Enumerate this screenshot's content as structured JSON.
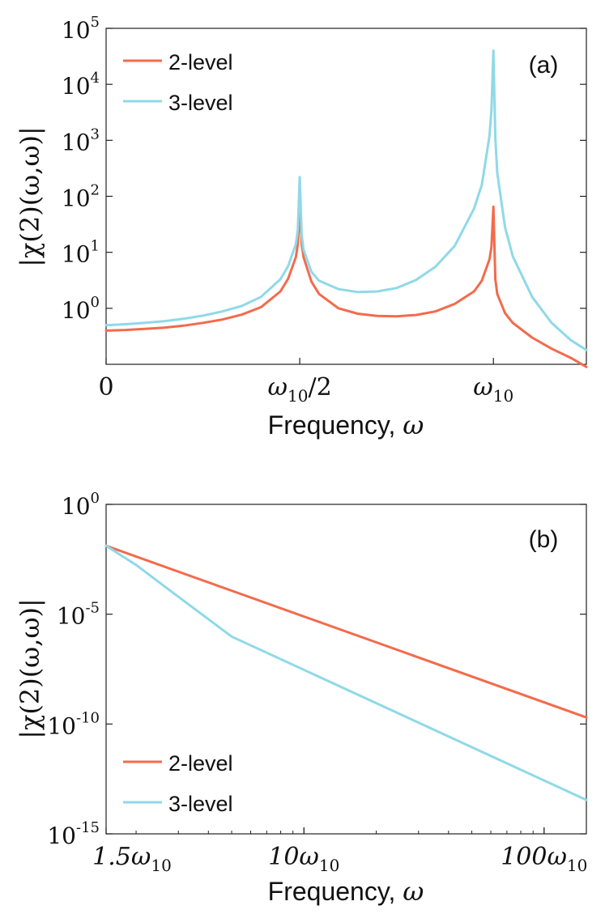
{
  "chart_data": [
    {
      "type": "line",
      "panel_label": "(a)",
      "xlabel_text": "Frequency, ",
      "xlabel_symbol": "ω",
      "ylabel": "|χ(2)(ω,ω)|",
      "yscale": "log",
      "ylim": [
        0.1,
        100000
      ],
      "xlim": [
        0,
        1.24
      ],
      "y_ticks": [
        {
          "value": 1,
          "base": "10",
          "exp": "0"
        },
        {
          "value": 10,
          "base": "10",
          "exp": "1"
        },
        {
          "value": 100,
          "base": "10",
          "exp": "2"
        },
        {
          "value": 1000,
          "base": "10",
          "exp": "3"
        },
        {
          "value": 10000,
          "base": "10",
          "exp": "4"
        },
        {
          "value": 100000,
          "base": "10",
          "exp": "5"
        }
      ],
      "x_ticks": [
        {
          "value": 0,
          "main": "0",
          "sub": "",
          "tail": ""
        },
        {
          "value": 0.5,
          "main": "ω",
          "sub": "10",
          "tail": "/2"
        },
        {
          "value": 1.0,
          "main": "ω",
          "sub": "10",
          "tail": ""
        }
      ],
      "legend_position": "top-left",
      "series": [
        {
          "name": "2-level",
          "color": "#f26b4c",
          "x": [
            0,
            0.05,
            0.1,
            0.15,
            0.2,
            0.25,
            0.3,
            0.35,
            0.4,
            0.45,
            0.47,
            0.49,
            0.495,
            0.5,
            0.505,
            0.51,
            0.53,
            0.55,
            0.6,
            0.65,
            0.7,
            0.75,
            0.8,
            0.85,
            0.9,
            0.95,
            0.97,
            0.99,
            0.995,
            1.0,
            1.005,
            1.01,
            1.03,
            1.05,
            1.1,
            1.15,
            1.2,
            1.24
          ],
          "values": [
            0.4,
            0.41,
            0.43,
            0.45,
            0.49,
            0.55,
            0.63,
            0.77,
            1.05,
            2.0,
            3.4,
            8.2,
            14,
            62,
            14,
            8.1,
            3.0,
            1.8,
            1.0,
            0.8,
            0.73,
            0.72,
            0.76,
            0.88,
            1.2,
            2.0,
            3.1,
            7.5,
            12.5,
            65,
            3.3,
            1.8,
            0.82,
            0.55,
            0.3,
            0.19,
            0.13,
            0.09
          ]
        },
        {
          "name": "3-level",
          "color": "#8fd9e8",
          "x": [
            0,
            0.05,
            0.1,
            0.15,
            0.2,
            0.25,
            0.3,
            0.35,
            0.4,
            0.45,
            0.47,
            0.49,
            0.495,
            0.5,
            0.505,
            0.51,
            0.53,
            0.55,
            0.6,
            0.65,
            0.7,
            0.75,
            0.8,
            0.85,
            0.9,
            0.95,
            0.97,
            0.99,
            0.995,
            1.0,
            1.005,
            1.01,
            1.03,
            1.05,
            1.1,
            1.15,
            1.2,
            1.24
          ],
          "values": [
            0.5,
            0.52,
            0.55,
            0.59,
            0.65,
            0.74,
            0.88,
            1.1,
            1.6,
            3.3,
            5.7,
            14,
            25,
            220,
            20,
            11,
            4.5,
            3.1,
            2.2,
            1.95,
            2.0,
            2.3,
            3.2,
            5.5,
            13,
            60,
            160,
            1200,
            3500,
            40000,
            1100,
            260,
            28,
            8.5,
            1.6,
            0.55,
            0.27,
            0.18
          ]
        }
      ]
    },
    {
      "type": "line",
      "panel_label": "(b)",
      "xlabel_text": "Frequency, ",
      "xlabel_symbol": "ω",
      "ylabel": "|χ(2)(ω,ω)|",
      "xscale": "log",
      "yscale": "log",
      "xlim": [
        1.5,
        150
      ],
      "ylim": [
        1e-15,
        1
      ],
      "y_ticks": [
        {
          "value": 1,
          "base": "10",
          "exp": "0"
        },
        {
          "value": 1e-05,
          "base": "10",
          "exp": "-5"
        },
        {
          "value": 1e-10,
          "base": "10",
          "exp": "-10"
        },
        {
          "value": 1e-15,
          "base": "10",
          "exp": "-15"
        }
      ],
      "x_ticks": [
        {
          "value": 1.5,
          "main": "1.5ω",
          "sub": "10",
          "tail": ""
        },
        {
          "value": 10,
          "main": "10ω",
          "sub": "10",
          "tail": ""
        },
        {
          "value": 100,
          "main": "100ω",
          "sub": "10",
          "tail": ""
        }
      ],
      "legend_position": "bottom-left",
      "series": [
        {
          "name": "2-level",
          "color": "#f26b4c",
          "x": [
            1.5,
            150
          ],
          "values": [
            0.013,
            2e-10
          ]
        },
        {
          "name": "3-level",
          "color": "#8fd9e8",
          "x": [
            1.5,
            2,
            3,
            5,
            150
          ],
          "values": [
            0.013,
            0.00175,
            6.2e-05,
            9.6e-07,
            3.5e-14
          ]
        }
      ]
    }
  ]
}
